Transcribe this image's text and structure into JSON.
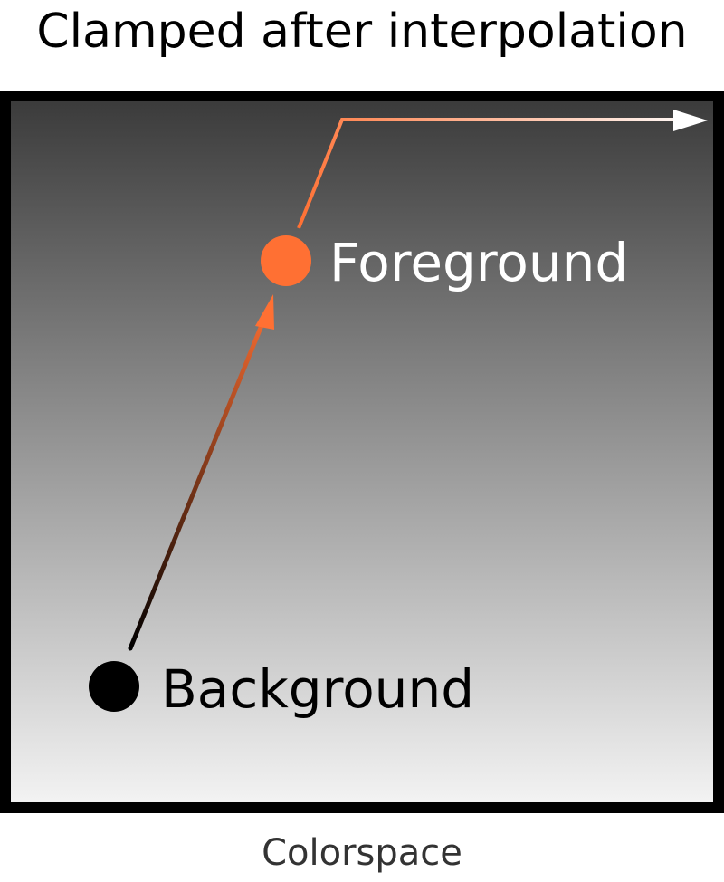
{
  "title": "Clamped after interpolation",
  "caption": "Colorspace",
  "labels": {
    "foreground": "Foreground",
    "background": "Background"
  },
  "colors": {
    "frame": "#000000",
    "gradient_top": "#3a3a3a",
    "gradient_bottom": "#f4f4f4",
    "foreground_point": "#ff7033",
    "background_point": "#000000",
    "arrow_start": "#000000",
    "arrow_mid": "#ff7033",
    "arrow_end": "#ffffff",
    "label_text": "#ffffff",
    "background_label_text": "#000000"
  }
}
